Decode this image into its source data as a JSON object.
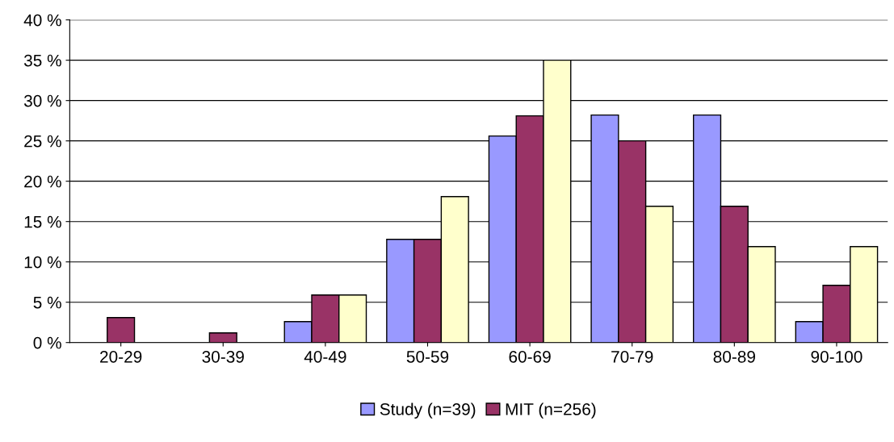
{
  "chart_data": {
    "type": "bar",
    "categories": [
      "20-29",
      "30-39",
      "40-49",
      "50-59",
      "60-69",
      "70-79",
      "80-89",
      "90-100"
    ],
    "series": [
      {
        "name": "Study (n=39)",
        "color": "#9999ff",
        "values": [
          0,
          0,
          2.6,
          12.8,
          25.6,
          28.2,
          28.2,
          2.6
        ]
      },
      {
        "name": "MIT (n=256)",
        "color": "#993366",
        "values": [
          3.1,
          1.2,
          5.9,
          12.8,
          28.1,
          25.0,
          16.9,
          7.1
        ]
      },
      {
        "color": "#ffffcc",
        "values": [
          0,
          0,
          5.9,
          18.1,
          35.0,
          16.9,
          11.9,
          11.9
        ]
      }
    ],
    "ylim": [
      0,
      40
    ],
    "yticks": [
      {
        "value": 0,
        "label": "0 %"
      },
      {
        "value": 5,
        "label": "5 %"
      },
      {
        "value": 10,
        "label": "10 %"
      },
      {
        "value": 15,
        "label": "15 %"
      },
      {
        "value": 20,
        "label": "20 %"
      },
      {
        "value": 25,
        "label": "25 %"
      },
      {
        "value": 30,
        "label": "30 %"
      },
      {
        "value": 35,
        "label": "35 %"
      },
      {
        "value": 40,
        "label": "40 %"
      }
    ],
    "grid": "y",
    "legend": "bottom"
  }
}
